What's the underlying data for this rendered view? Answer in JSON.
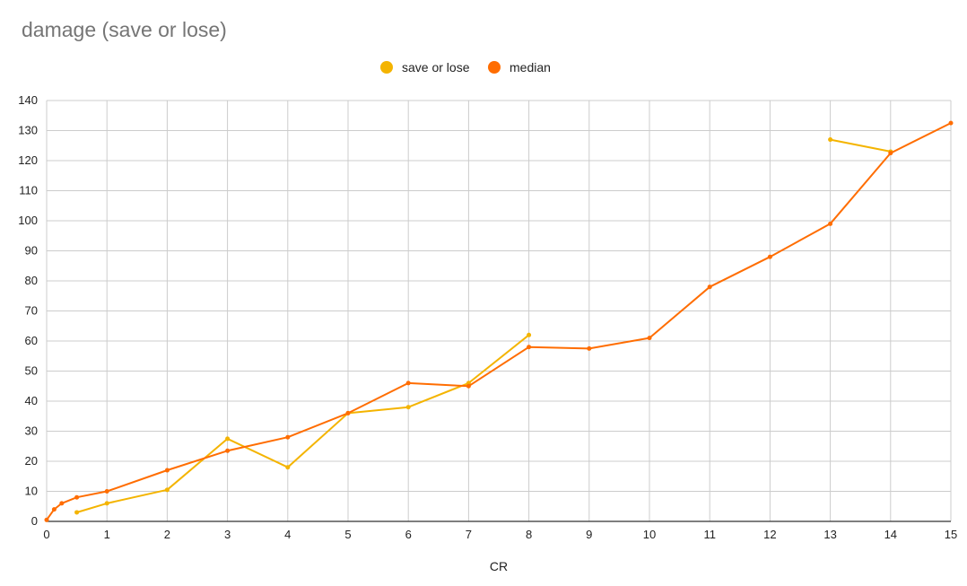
{
  "chart_data": {
    "type": "line",
    "title": "damage (save or lose)",
    "xlabel": "CR",
    "ylabel": "",
    "xlim": [
      0,
      15
    ],
    "ylim": [
      0,
      140
    ],
    "xticks": [
      0,
      1,
      2,
      3,
      4,
      5,
      6,
      7,
      8,
      9,
      10,
      11,
      12,
      13,
      14,
      15
    ],
    "yticks": [
      0,
      10,
      20,
      30,
      40,
      50,
      60,
      70,
      80,
      90,
      100,
      110,
      120,
      130,
      140
    ],
    "grid": true,
    "legend_position": "top",
    "series": [
      {
        "name": "save or lose",
        "color": "#f4b400",
        "segments": [
          [
            [
              0.5,
              3
            ],
            [
              1,
              6
            ],
            [
              2,
              10.5
            ],
            [
              3,
              27.5
            ],
            [
              4,
              18
            ],
            [
              5,
              36
            ],
            [
              6,
              38
            ],
            [
              7,
              46
            ],
            [
              8,
              62
            ]
          ],
          [
            [
              13,
              127
            ],
            [
              14,
              123
            ]
          ]
        ]
      },
      {
        "name": "median",
        "color": "#ff6d01",
        "segments": [
          [
            [
              0,
              0.5
            ],
            [
              0.125,
              4
            ],
            [
              0.25,
              6
            ],
            [
              0.5,
              8
            ],
            [
              1,
              10
            ],
            [
              2,
              17
            ],
            [
              3,
              23.5
            ],
            [
              4,
              28
            ],
            [
              5,
              36
            ],
            [
              6,
              46
            ],
            [
              7,
              45
            ],
            [
              8,
              58
            ],
            [
              9,
              57.5
            ],
            [
              10,
              61
            ],
            [
              11,
              78
            ],
            [
              12,
              88
            ],
            [
              13,
              99
            ],
            [
              14,
              122.5
            ],
            [
              15,
              132.5
            ]
          ]
        ]
      }
    ]
  }
}
